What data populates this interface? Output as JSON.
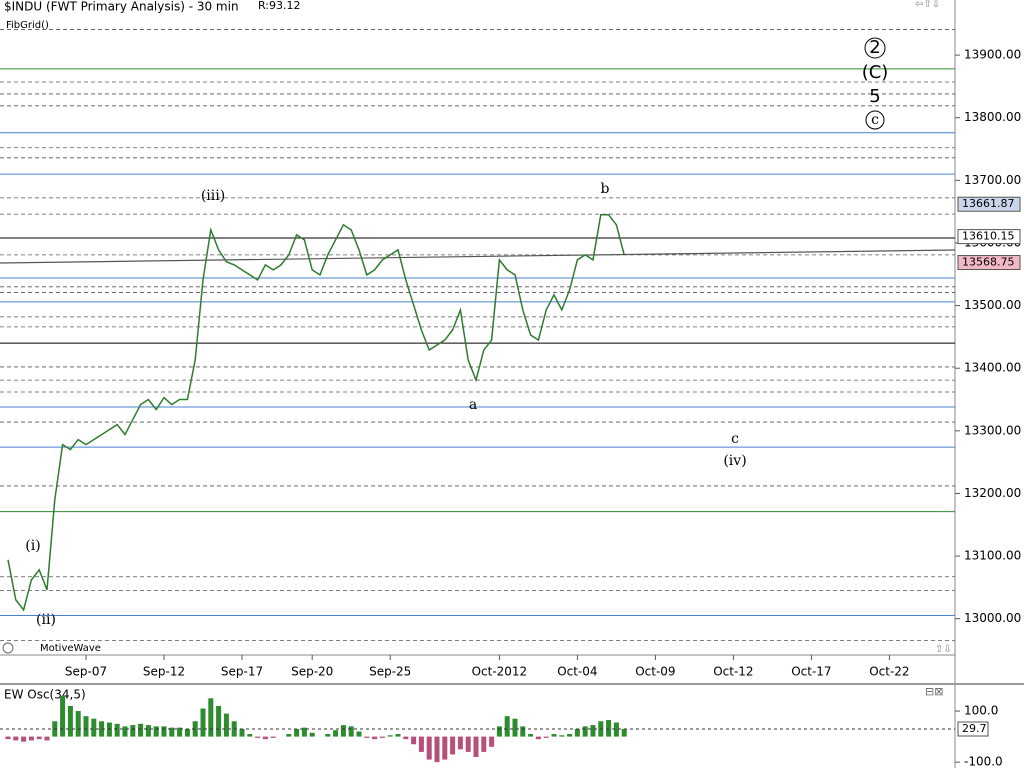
{
  "header": {
    "title": "$INDU (FWT Primary Analysis) - 30 min",
    "range": "R:93.12",
    "study": "FibGrid()",
    "watermark": "MotiveWave"
  },
  "annotations": [
    "(iii)",
    "b",
    "a",
    "c",
    "(iv)",
    "(i)",
    "(ii)",
    "2",
    "(C)",
    "5",
    "c"
  ],
  "chart_data": [
    {
      "type": "line",
      "color": "#2e7d2e",
      "categories": [
        null,
        null,
        null,
        null,
        null,
        null,
        null,
        null,
        null,
        null,
        "Sep-07",
        null,
        null,
        null,
        null,
        null,
        null,
        null,
        null,
        null,
        "Sep-12",
        null,
        null,
        null,
        null,
        null,
        null,
        null,
        null,
        null,
        "Sep-17",
        null,
        null,
        null,
        null,
        null,
        null,
        null,
        null,
        "Sep-20",
        null,
        null,
        null,
        null,
        null,
        null,
        null,
        null,
        null,
        "Sep-25",
        null,
        null,
        null,
        null,
        null,
        null,
        null,
        null,
        null,
        null,
        null,
        null,
        null,
        "Oct-2012",
        null,
        null,
        null,
        null,
        null,
        null,
        null,
        null,
        null,
        "Oct-04",
        null,
        null,
        null,
        null,
        null,
        null,
        null,
        null,
        null,
        "Oct-09",
        null,
        null,
        null,
        null,
        null,
        null,
        null,
        null,
        null,
        "Oct-12",
        null,
        null,
        null,
        null,
        null,
        null,
        null,
        null,
        null,
        "Oct-17",
        null,
        null,
        null,
        null,
        null,
        null,
        null,
        null,
        null,
        "Oct-22"
      ],
      "values": [
        13094,
        13030,
        13014,
        13062,
        13078,
        13046,
        13190,
        13278,
        13270,
        13286,
        13278,
        13286,
        13294,
        13302,
        13310,
        13294,
        13318,
        13342,
        13350,
        13334,
        13353,
        13342,
        13350,
        13350,
        13413,
        13541,
        13621,
        13589,
        13570,
        13565,
        13557,
        13549,
        13541,
        13565,
        13557,
        13565,
        13581,
        13613,
        13605,
        13557,
        13549,
        13581,
        13605,
        13629,
        13621,
        13589,
        13549,
        13557,
        13573,
        13581,
        13589,
        13541,
        13501,
        13461,
        13429,
        13437,
        13445,
        13461,
        13493,
        13413,
        13381,
        13429,
        13445,
        13573,
        13557,
        13549,
        13493,
        13453,
        13445,
        13493,
        13517,
        13493,
        13525,
        13573,
        13581,
        13573,
        13645,
        13645,
        13629,
        13581,
        null,
        null,
        null,
        null,
        null,
        null,
        null,
        null,
        null,
        null,
        null,
        null,
        null,
        null,
        null,
        null,
        null,
        null,
        null,
        null,
        null,
        null,
        null,
        null,
        null,
        null,
        null,
        null,
        null,
        null,
        null,
        null,
        null,
        null
      ],
      "ylim": [
        12942,
        13988
      ],
      "yticks": [
        {
          "value": 13000,
          "label": "13000.00"
        },
        {
          "value": 13100,
          "label": "13100.00"
        },
        {
          "value": 13200,
          "label": "13200.00"
        },
        {
          "value": 13300,
          "label": "13300.00"
        },
        {
          "value": 13400,
          "label": "13400.00"
        },
        {
          "value": 13500,
          "label": "13500.00"
        },
        {
          "value": 13600,
          "label": "13600.00"
        },
        {
          "value": 13700,
          "label": "13700.00"
        },
        {
          "value": 13800,
          "label": "13800.00"
        },
        {
          "value": 13900,
          "label": "13900.00"
        }
      ],
      "levels": [
        {
          "value": 13878,
          "color": "#2e8b2e"
        },
        {
          "value": 13776,
          "color": "#4a7fd0"
        },
        {
          "value": 13710,
          "color": "#4a7fd0"
        },
        {
          "value": 13608,
          "color": "#000000"
        },
        {
          "value": 13544,
          "color": "#4a7fd0"
        },
        {
          "value": 13506,
          "color": "#4a7fd0"
        },
        {
          "value": 13440,
          "color": "#000000"
        },
        {
          "value": 13338,
          "color": "#4a7fd0"
        },
        {
          "value": 13274,
          "color": "#4a7fd0"
        },
        {
          "value": 13171,
          "color": "#2e8b2e"
        },
        {
          "value": 13005,
          "color": "#4a7fd0"
        }
      ],
      "dashed_levels": [
        13941,
        13857,
        13838,
        13819,
        13752,
        13736,
        13672,
        13646,
        13581,
        13530,
        13521,
        13482,
        13466,
        13402,
        13381,
        13362,
        13314,
        13212,
        13067,
        13045,
        12965
      ],
      "price_tags": [
        {
          "value": 13661.87,
          "color": "#c9d6ea"
        },
        {
          "value": 13610.15,
          "color": "#ffffff"
        },
        {
          "value": 13568.75,
          "color": "#f2b8c6"
        }
      ]
    },
    {
      "type": "bar",
      "title": "EW Osc(34,5)",
      "up_color": "#2e8b2e",
      "down_color": "#b5507a",
      "values": [
        -10,
        -15,
        -20,
        -15,
        -10,
        -15,
        60,
        160,
        120,
        100,
        80,
        70,
        60,
        55,
        50,
        40,
        45,
        50,
        45,
        40,
        40,
        35,
        35,
        30,
        60,
        110,
        150,
        120,
        90,
        60,
        30,
        10,
        -5,
        -10,
        -5,
        0,
        10,
        30,
        35,
        15,
        0,
        10,
        25,
        45,
        40,
        20,
        -5,
        -10,
        -5,
        5,
        10,
        -10,
        -30,
        -60,
        -90,
        -100,
        -90,
        -70,
        -50,
        -60,
        -80,
        -60,
        -40,
        40,
        80,
        70,
        40,
        10,
        -10,
        -5,
        10,
        5,
        10,
        30,
        40,
        45,
        60,
        65,
        55,
        30,
        null,
        null,
        null,
        null,
        null,
        null,
        null,
        null,
        null,
        null,
        null,
        null,
        null,
        null,
        null,
        null,
        null,
        null,
        null,
        null,
        null,
        null,
        null,
        null,
        null,
        null,
        null,
        null,
        null,
        null,
        null,
        null,
        null,
        null
      ],
      "ylim": [
        -123,
        202
      ],
      "yticks": [
        {
          "value": 100,
          "label": "100.0"
        },
        {
          "value": -100,
          "label": "-100.0"
        }
      ],
      "current": 29.7
    }
  ]
}
